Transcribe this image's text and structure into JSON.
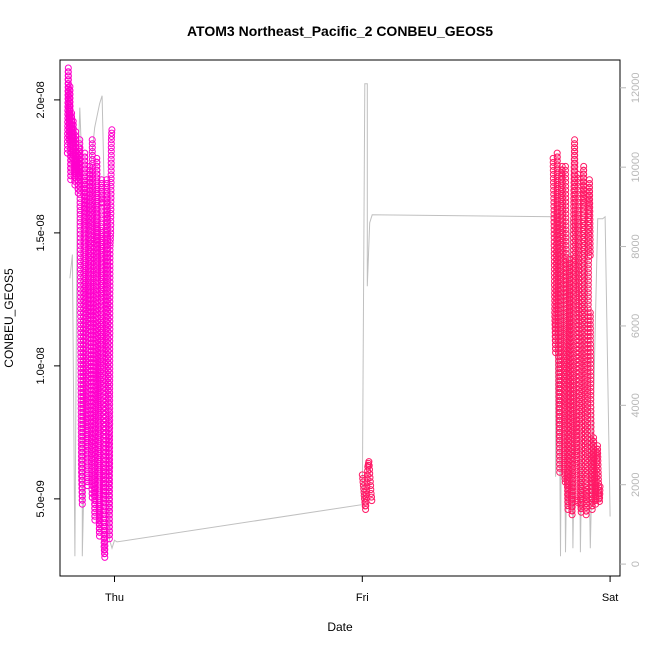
{
  "chart_data": {
    "type": "scatter",
    "title": "ATOM3 Northeast_Pacific_2 CONBEU_GEOS5",
    "xlabel": "Date",
    "ylabel": "CONBEU_GEOS5",
    "x_ticks": [
      {
        "day": 1,
        "label": "Thu"
      },
      {
        "day": 2,
        "label": "Fri"
      },
      {
        "day": 3,
        "label": "Sat"
      }
    ],
    "xlim": [
      0.78,
      3.04
    ],
    "ylim": [
      2.1e-09,
      2.15e-08
    ],
    "y_ticks": [
      {
        "value": 5e-09,
        "label": "5.0e-09"
      },
      {
        "value": 1e-08,
        "label": "1.0e-08"
      },
      {
        "value": 1.5e-08,
        "label": "1.5e-08"
      },
      {
        "value": 2e-08,
        "label": "2.0e-08"
      }
    ],
    "y2lim": [
      -300,
      12700
    ],
    "y2_ticks": [
      {
        "value": 0,
        "label": "0"
      },
      {
        "value": 2000,
        "label": "2000"
      },
      {
        "value": 4000,
        "label": "4000"
      },
      {
        "value": 6000,
        "label": "6000"
      },
      {
        "value": 8000,
        "label": "8000"
      },
      {
        "value": 10000,
        "label": "10000"
      },
      {
        "value": 12000,
        "label": "12000"
      }
    ],
    "colors": {
      "points_a": "#ff00cc",
      "points_b": "#ff1a66",
      "altitude_line": "#c0c0c0",
      "right_axis": "#b8b8b8"
    },
    "series": [
      {
        "color": "#ff00cc",
        "segments": [
          {
            "start": 0.81,
            "end": 0.86,
            "values": [
              1.8e-08,
              2.12e-08,
              1.85e-08,
              2.05e-08,
              1.7e-08,
              1.95e-08,
              1.78e-08,
              1.92e-08,
              1.75e-08,
              1.68e-08,
              1.88e-08,
              1.72e-08,
              1.8e-08,
              1.65e-08,
              1.82e-08,
              1.7e-08
            ]
          },
          {
            "start": 0.86,
            "end": 0.91,
            "values": [
              1.85e-08,
              1.2e-08,
              6e-09,
              4.8e-09,
              9e-09,
              1.5e-08,
              1.8e-08,
              1.3e-08,
              8e-09,
              5.5e-09,
              1.1e-08,
              1.6e-08,
              1.75e-08,
              1.4e-08,
              7e-09,
              4.9e-09
            ]
          },
          {
            "start": 0.91,
            "end": 0.95,
            "values": [
              1.85e-08,
              1.6e-08,
              1.1e-08,
              6e-09,
              4.2e-09,
              8e-09,
              1.4e-08,
              1.78e-08,
              1.5e-08,
              9e-09,
              5e-09,
              3.6e-09,
              7e-09,
              1.2e-08,
              1.7e-08,
              1.6e-08
            ]
          },
          {
            "start": 0.95,
            "end": 0.99,
            "values": [
              1.5e-08,
              1e-08,
              5e-09,
              3.2e-09,
              2.8e-09,
              6e-09,
              1.2e-08,
              1.7e-08,
              1.6e-08,
              1.1e-08,
              6e-09,
              3.5e-09,
              1.45e-08,
              1.5e-08,
              1.85e-08,
              1.9e-08
            ]
          }
        ]
      },
      {
        "color": "#ff1a66",
        "segments": [
          {
            "start": 2.0,
            "end": 2.04,
            "values": [
              5.9e-09,
              5.5e-09,
              5e-09,
              4.6e-09,
              5.3e-09,
              6.2e-09,
              6.4e-09,
              5.8e-09,
              5.2e-09,
              4.8e-09
            ]
          },
          {
            "start": 2.77,
            "end": 2.82,
            "values": [
              1.78e-08,
              1.6e-08,
              1.2e-08,
              1.05e-08,
              1.4e-08,
              1.8e-08,
              1.3e-08,
              9e-09,
              6e-09,
              1.2e-08,
              1.7e-08,
              1.75e-08,
              1.5e-08,
              1.1e-08,
              6e-09,
              5.5e-09
            ]
          },
          {
            "start": 2.82,
            "end": 2.87,
            "values": [
              1.75e-08,
              1.2e-08,
              6e-09,
              4.6e-09,
              8e-09,
              1.4e-08,
              1e-08,
              5e-09,
              4.4e-09,
              7e-09,
              1.6e-08,
              1.85e-08,
              1.5e-08,
              9e-09,
              5e-09,
              4.8e-09
            ]
          },
          {
            "start": 2.87,
            "end": 2.92,
            "values": [
              1.72e-08,
              1.3e-08,
              8e-09,
              5e-09,
              4.5e-09,
              1e-08,
              1.55e-08,
              1.75e-08,
              1.2e-08,
              7e-09,
              4.4e-09,
              5.5e-09,
              9e-09,
              1.5e-08,
              1.7e-08,
              1.4e-08
            ]
          },
          {
            "start": 2.92,
            "end": 2.96,
            "values": [
              1.2e-08,
              8e-09,
              5e-09,
              4.6e-09,
              6e-09,
              7.3e-09,
              6.2e-09,
              5.5e-09,
              4.8e-09,
              5.8e-09,
              6.5e-09,
              7e-09,
              6e-09,
              5.2e-09,
              4.9e-09,
              5.6e-09
            ]
          }
        ]
      }
    ],
    "altitude_line": [
      [
        0.82,
        7200
      ],
      [
        0.83,
        7800
      ],
      [
        0.84,
        200
      ],
      [
        0.85,
        9500
      ],
      [
        0.86,
        11500
      ],
      [
        0.87,
        9800
      ],
      [
        0.87,
        200
      ],
      [
        0.88,
        3000
      ],
      [
        0.9,
        9800
      ],
      [
        0.92,
        11000
      ],
      [
        0.94,
        11600
      ],
      [
        0.95,
        11800
      ],
      [
        0.96,
        9000
      ],
      [
        0.97,
        6000
      ],
      [
        0.98,
        600
      ],
      [
        0.99,
        400
      ],
      [
        1.0,
        600
      ],
      [
        1.01,
        560
      ],
      [
        2.0,
        1500
      ],
      [
        2.01,
        12100
      ],
      [
        2.02,
        12100
      ],
      [
        2.02,
        7000
      ],
      [
        2.03,
        8600
      ],
      [
        2.04,
        8800
      ],
      [
        2.78,
        8750
      ],
      [
        2.78,
        2200
      ],
      [
        2.79,
        8700
      ],
      [
        2.8,
        200
      ],
      [
        2.81,
        9800
      ],
      [
        2.82,
        300
      ],
      [
        2.84,
        8700
      ],
      [
        2.85,
        400
      ],
      [
        2.87,
        8700
      ],
      [
        2.88,
        300
      ],
      [
        2.9,
        8700
      ],
      [
        2.92,
        400
      ],
      [
        2.95,
        8700
      ],
      [
        2.97,
        8700
      ],
      [
        2.98,
        8750
      ],
      [
        3.0,
        1200
      ]
    ]
  }
}
